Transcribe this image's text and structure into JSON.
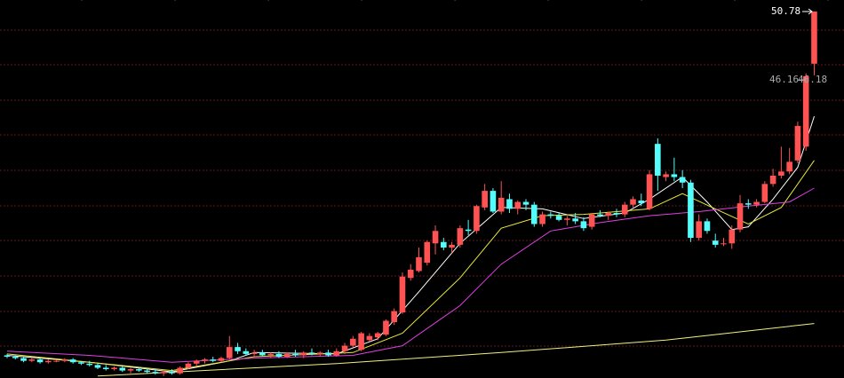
{
  "chart_data": {
    "type": "candlestick",
    "ylim": [
      24.26,
      51.61
    ],
    "up_color": "#ff5252",
    "down_color": "#54fcfc",
    "candles": [
      [
        25.9,
        26.0,
        25.7,
        25.8
      ],
      [
        25.8,
        25.9,
        25.6,
        25.7
      ],
      [
        25.7,
        25.8,
        25.4,
        25.5
      ],
      [
        25.5,
        25.7,
        25.4,
        25.6
      ],
      [
        25.6,
        25.7,
        25.3,
        25.4
      ],
      [
        25.4,
        25.6,
        25.3,
        25.5
      ],
      [
        25.5,
        25.6,
        25.4,
        25.5
      ],
      [
        25.5,
        25.7,
        25.4,
        25.6
      ],
      [
        25.6,
        25.7,
        25.3,
        25.4
      ],
      [
        25.4,
        25.5,
        25.2,
        25.3
      ],
      [
        25.3,
        25.5,
        25.1,
        25.2
      ],
      [
        25.2,
        25.3,
        24.9,
        25.0
      ],
      [
        25.0,
        25.2,
        24.8,
        24.9
      ],
      [
        24.9,
        25.1,
        24.8,
        25.0
      ],
      [
        25.0,
        25.1,
        24.7,
        24.8
      ],
      [
        24.8,
        25.0,
        24.6,
        24.9
      ],
      [
        24.9,
        25.0,
        24.7,
        24.8
      ],
      [
        24.8,
        25.0,
        24.6,
        24.7
      ],
      [
        24.7,
        24.9,
        24.5,
        24.6
      ],
      [
        24.6,
        24.8,
        24.4,
        24.7
      ],
      [
        24.7,
        24.9,
        24.5,
        24.6
      ],
      [
        24.6,
        25.1,
        24.5,
        25.0
      ],
      [
        25.0,
        25.4,
        24.9,
        25.3
      ],
      [
        25.3,
        25.6,
        25.1,
        25.5
      ],
      [
        25.5,
        25.7,
        25.3,
        25.6
      ],
      [
        25.6,
        25.8,
        25.4,
        25.5
      ],
      [
        25.5,
        25.8,
        25.4,
        25.7
      ],
      [
        25.7,
        27.3,
        25.6,
        26.5
      ],
      [
        26.5,
        26.8,
        26.0,
        26.2
      ],
      [
        26.2,
        26.4,
        25.9,
        26.0
      ],
      [
        26.0,
        26.3,
        25.8,
        26.1
      ],
      [
        26.1,
        26.3,
        25.8,
        25.9
      ],
      [
        25.9,
        26.1,
        25.7,
        26.0
      ],
      [
        26.0,
        26.2,
        25.7,
        25.8
      ],
      [
        25.8,
        26.1,
        25.7,
        26.0
      ],
      [
        26.0,
        26.3,
        25.8,
        25.9
      ],
      [
        25.9,
        26.2,
        25.7,
        26.1
      ],
      [
        26.1,
        26.4,
        25.9,
        26.0
      ],
      [
        26.0,
        26.2,
        25.8,
        26.1
      ],
      [
        26.1,
        26.3,
        25.8,
        25.9
      ],
      [
        25.9,
        26.4,
        25.8,
        26.2
      ],
      [
        26.2,
        26.8,
        26.0,
        26.6
      ],
      [
        26.6,
        27.3,
        26.5,
        27.1
      ],
      [
        26.3,
        27.6,
        26.2,
        27.5
      ],
      [
        27.0,
        27.5,
        26.9,
        27.3
      ],
      [
        27.2,
        27.6,
        27.0,
        27.5
      ],
      [
        27.4,
        28.5,
        27.3,
        28.4
      ],
      [
        28.3,
        29.3,
        28.1,
        29.1
      ],
      [
        29.0,
        31.9,
        28.9,
        31.6
      ],
      [
        31.5,
        32.5,
        31.3,
        32.1
      ],
      [
        32.0,
        33.7,
        31.9,
        33.0
      ],
      [
        32.6,
        34.2,
        32.4,
        34.1
      ],
      [
        34.0,
        35.3,
        33.2,
        34.9
      ],
      [
        34.1,
        34.4,
        33.5,
        33.7
      ],
      [
        33.7,
        34.1,
        33.3,
        33.9
      ],
      [
        33.9,
        35.3,
        33.7,
        35.1
      ],
      [
        35.0,
        35.7,
        34.6,
        34.9
      ],
      [
        34.9,
        36.8,
        34.7,
        36.7
      ],
      [
        36.6,
        38.3,
        36.4,
        37.8
      ],
      [
        37.8,
        38.0,
        36.2,
        36.3
      ],
      [
        36.3,
        38.5,
        36.1,
        37.3
      ],
      [
        37.2,
        37.6,
        36.2,
        36.5
      ],
      [
        36.5,
        37.1,
        36.1,
        37.0
      ],
      [
        37.0,
        37.2,
        36.4,
        36.8
      ],
      [
        36.8,
        37.0,
        35.2,
        35.4
      ],
      [
        35.4,
        36.3,
        35.2,
        36.1
      ],
      [
        36.1,
        36.3,
        35.8,
        36.0
      ],
      [
        36.0,
        36.2,
        35.6,
        35.7
      ],
      [
        35.7,
        36.0,
        35.3,
        35.8
      ],
      [
        35.8,
        36.2,
        35.4,
        35.6
      ],
      [
        35.6,
        35.9,
        34.9,
        35.1
      ],
      [
        35.2,
        36.2,
        35.0,
        36.1
      ],
      [
        36.1,
        36.4,
        35.9,
        36.0
      ],
      [
        36.0,
        36.3,
        35.7,
        36.2
      ],
      [
        36.2,
        36.5,
        35.9,
        36.1
      ],
      [
        36.1,
        37.0,
        35.9,
        36.8
      ],
      [
        36.8,
        37.4,
        36.6,
        37.2
      ],
      [
        37.1,
        37.6,
        36.7,
        36.9
      ],
      [
        36.5,
        39.3,
        36.4,
        39.0
      ],
      [
        41.2,
        41.6,
        37.8,
        38.9
      ],
      [
        38.8,
        39.2,
        38.5,
        39.0
      ],
      [
        39.0,
        40.2,
        38.5,
        38.8
      ],
      [
        38.8,
        39.3,
        38.0,
        38.4
      ],
      [
        38.4,
        38.6,
        34.1,
        34.4
      ],
      [
        34.4,
        36.1,
        34.2,
        35.6
      ],
      [
        35.6,
        35.8,
        34.7,
        34.9
      ],
      [
        34.2,
        34.7,
        33.7,
        33.9
      ],
      [
        34.0,
        34.4,
        33.8,
        34.0
      ],
      [
        34.0,
        35.3,
        33.6,
        35.0
      ],
      [
        35.0,
        37.5,
        34.8,
        36.9
      ],
      [
        36.9,
        37.2,
        36.5,
        36.8
      ],
      [
        36.8,
        37.2,
        36.6,
        37.0
      ],
      [
        37.0,
        38.5,
        36.9,
        38.3
      ],
      [
        38.3,
        39.4,
        38.1,
        38.9
      ],
      [
        38.9,
        41.0,
        38.7,
        39.2
      ],
      [
        39.2,
        40.9,
        39.0,
        39.9
      ],
      [
        40.0,
        42.8,
        39.8,
        42.5
      ],
      [
        41.0,
        46.3,
        40.7,
        46.1
      ],
      [
        47.0,
        50.78,
        46.16,
        50.78
      ]
    ],
    "series": [
      {
        "color": "#ffffff",
        "x": [
          0,
          10,
          20,
          27,
          30,
          40,
          45,
          50,
          55,
          60,
          65,
          70,
          75,
          78,
          82,
          85,
          88,
          90,
          93,
          96,
          98
        ],
        "values": [
          25.9,
          25.4,
          24.7,
          25.5,
          26.1,
          26.0,
          27.1,
          30.5,
          34.0,
          36.6,
          36.5,
          35.8,
          36.2,
          37.2,
          38.8,
          37.0,
          35.0,
          35.2,
          37.2,
          39.5,
          43.2
        ]
      },
      {
        "color": "#e8e83a",
        "x": [
          0,
          20,
          30,
          42,
          48,
          55,
          60,
          65,
          70,
          78,
          82,
          86,
          90,
          94,
          98
        ],
        "values": [
          26.0,
          24.8,
          25.8,
          26.1,
          27.5,
          31.5,
          35.1,
          36.0,
          36.1,
          36.5,
          37.6,
          36.5,
          35.4,
          36.6,
          40.0
        ]
      },
      {
        "color": "#e040e0",
        "x": [
          0,
          10,
          20,
          30,
          42,
          48,
          55,
          60,
          66,
          72,
          78,
          84,
          90,
          95,
          98
        ],
        "values": [
          26.2,
          25.9,
          25.4,
          25.7,
          25.9,
          26.6,
          29.5,
          32.5,
          34.9,
          35.5,
          36.0,
          36.3,
          36.7,
          37.0,
          38.0
        ]
      },
      {
        "color": "#f0f080",
        "x": [
          11,
          40,
          60,
          80,
          98
        ],
        "values": [
          24.4,
          25.3,
          26.1,
          27.0,
          28.2
        ]
      }
    ],
    "annotations": [
      "50.78",
      "46.16",
      "46.18"
    ]
  }
}
